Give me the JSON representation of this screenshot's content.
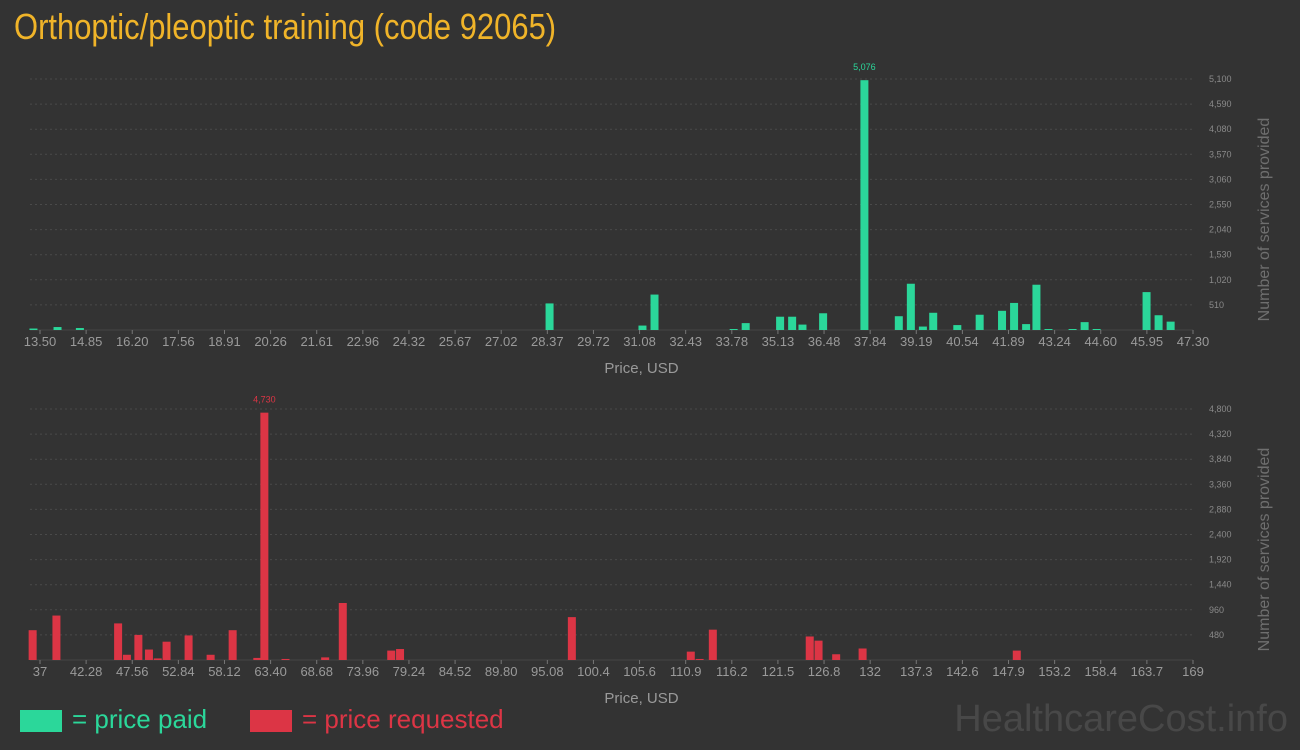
{
  "title": "Orthoptic/pleoptic training (code 92065)",
  "colors": {
    "paid": "#2bd79a",
    "requested": "#dc3545",
    "title": "#f0b429",
    "background": "#333333"
  },
  "legend": {
    "paid_label": "= price paid",
    "requested_label": "= price requested"
  },
  "watermark": "HealthcareCost.info",
  "chart_data": [
    {
      "type": "bar",
      "series_name": "price paid",
      "xlabel": "Price, USD",
      "ylabel": "Number of services provided",
      "xlim": [
        13.5,
        47.3
      ],
      "ylim": [
        0,
        5100
      ],
      "x_ticks": [
        "13.50",
        "14.85",
        "16.20",
        "17.56",
        "18.91",
        "20.26",
        "21.61",
        "22.96",
        "24.32",
        "25.67",
        "27.02",
        "28.37",
        "29.72",
        "31.08",
        "32.43",
        "33.78",
        "35.13",
        "36.48",
        "37.84",
        "39.19",
        "40.54",
        "41.89",
        "43.24",
        "44.60",
        "45.95",
        "47.30"
      ],
      "y_ticks": [
        "510",
        "1,020",
        "1,530",
        "2,040",
        "2,550",
        "3,060",
        "3,570",
        "4,080",
        "4,590",
        "5,100"
      ],
      "peak_label": "5,076",
      "x": [
        13.6,
        14.3,
        14.95,
        28.6,
        31.3,
        31.65,
        33.95,
        34.3,
        35.3,
        35.65,
        35.95,
        36.55,
        37.75,
        38.75,
        39.1,
        39.45,
        39.75,
        40.45,
        41.1,
        41.75,
        42.1,
        42.45,
        42.75,
        43.1,
        43.8,
        44.15,
        44.5,
        45.95,
        46.3,
        46.65
      ],
      "values": [
        30,
        60,
        40,
        540,
        90,
        720,
        20,
        140,
        270,
        270,
        110,
        340,
        5076,
        280,
        940,
        70,
        350,
        100,
        310,
        390,
        550,
        120,
        920,
        20,
        15,
        160,
        20,
        770,
        300,
        170
      ],
      "grid": true,
      "legend": "bottom-left"
    },
    {
      "type": "bar",
      "series_name": "price requested",
      "xlabel": "Price, USD",
      "ylabel": "Number of services provided",
      "xlim": [
        37,
        169
      ],
      "ylim": [
        0,
        4800
      ],
      "x_ticks": [
        "37",
        "42.28",
        "47.56",
        "52.84",
        "58.12",
        "63.40",
        "68.68",
        "73.96",
        "79.24",
        "84.52",
        "89.80",
        "95.08",
        "100.4",
        "105.6",
        "110.9",
        "116.2",
        "121.5",
        "126.8",
        "132",
        "137.3",
        "142.6",
        "147.9",
        "153.2",
        "158.4",
        "163.7",
        "169"
      ],
      "y_ticks": [
        "480",
        "960",
        "1,440",
        "1,920",
        "2,400",
        "2,880",
        "3,360",
        "3,840",
        "4,320",
        "4,800"
      ],
      "peak_label": "4,730",
      "x": [
        37.3,
        40,
        47,
        48,
        49.3,
        50.5,
        51.5,
        52.5,
        55,
        57.5,
        60,
        62.8,
        63.6,
        66,
        70.5,
        72.5,
        78,
        79,
        98.5,
        112,
        113,
        114.5,
        125.5,
        126.5,
        128.5,
        131.5,
        149
      ],
      "values": [
        570,
        850,
        700,
        100,
        480,
        200,
        30,
        350,
        470,
        100,
        570,
        40,
        4730,
        20,
        50,
        1090,
        180,
        210,
        820,
        160,
        20,
        580,
        450,
        370,
        110,
        220,
        180
      ],
      "grid": true,
      "legend": "bottom-left"
    }
  ]
}
